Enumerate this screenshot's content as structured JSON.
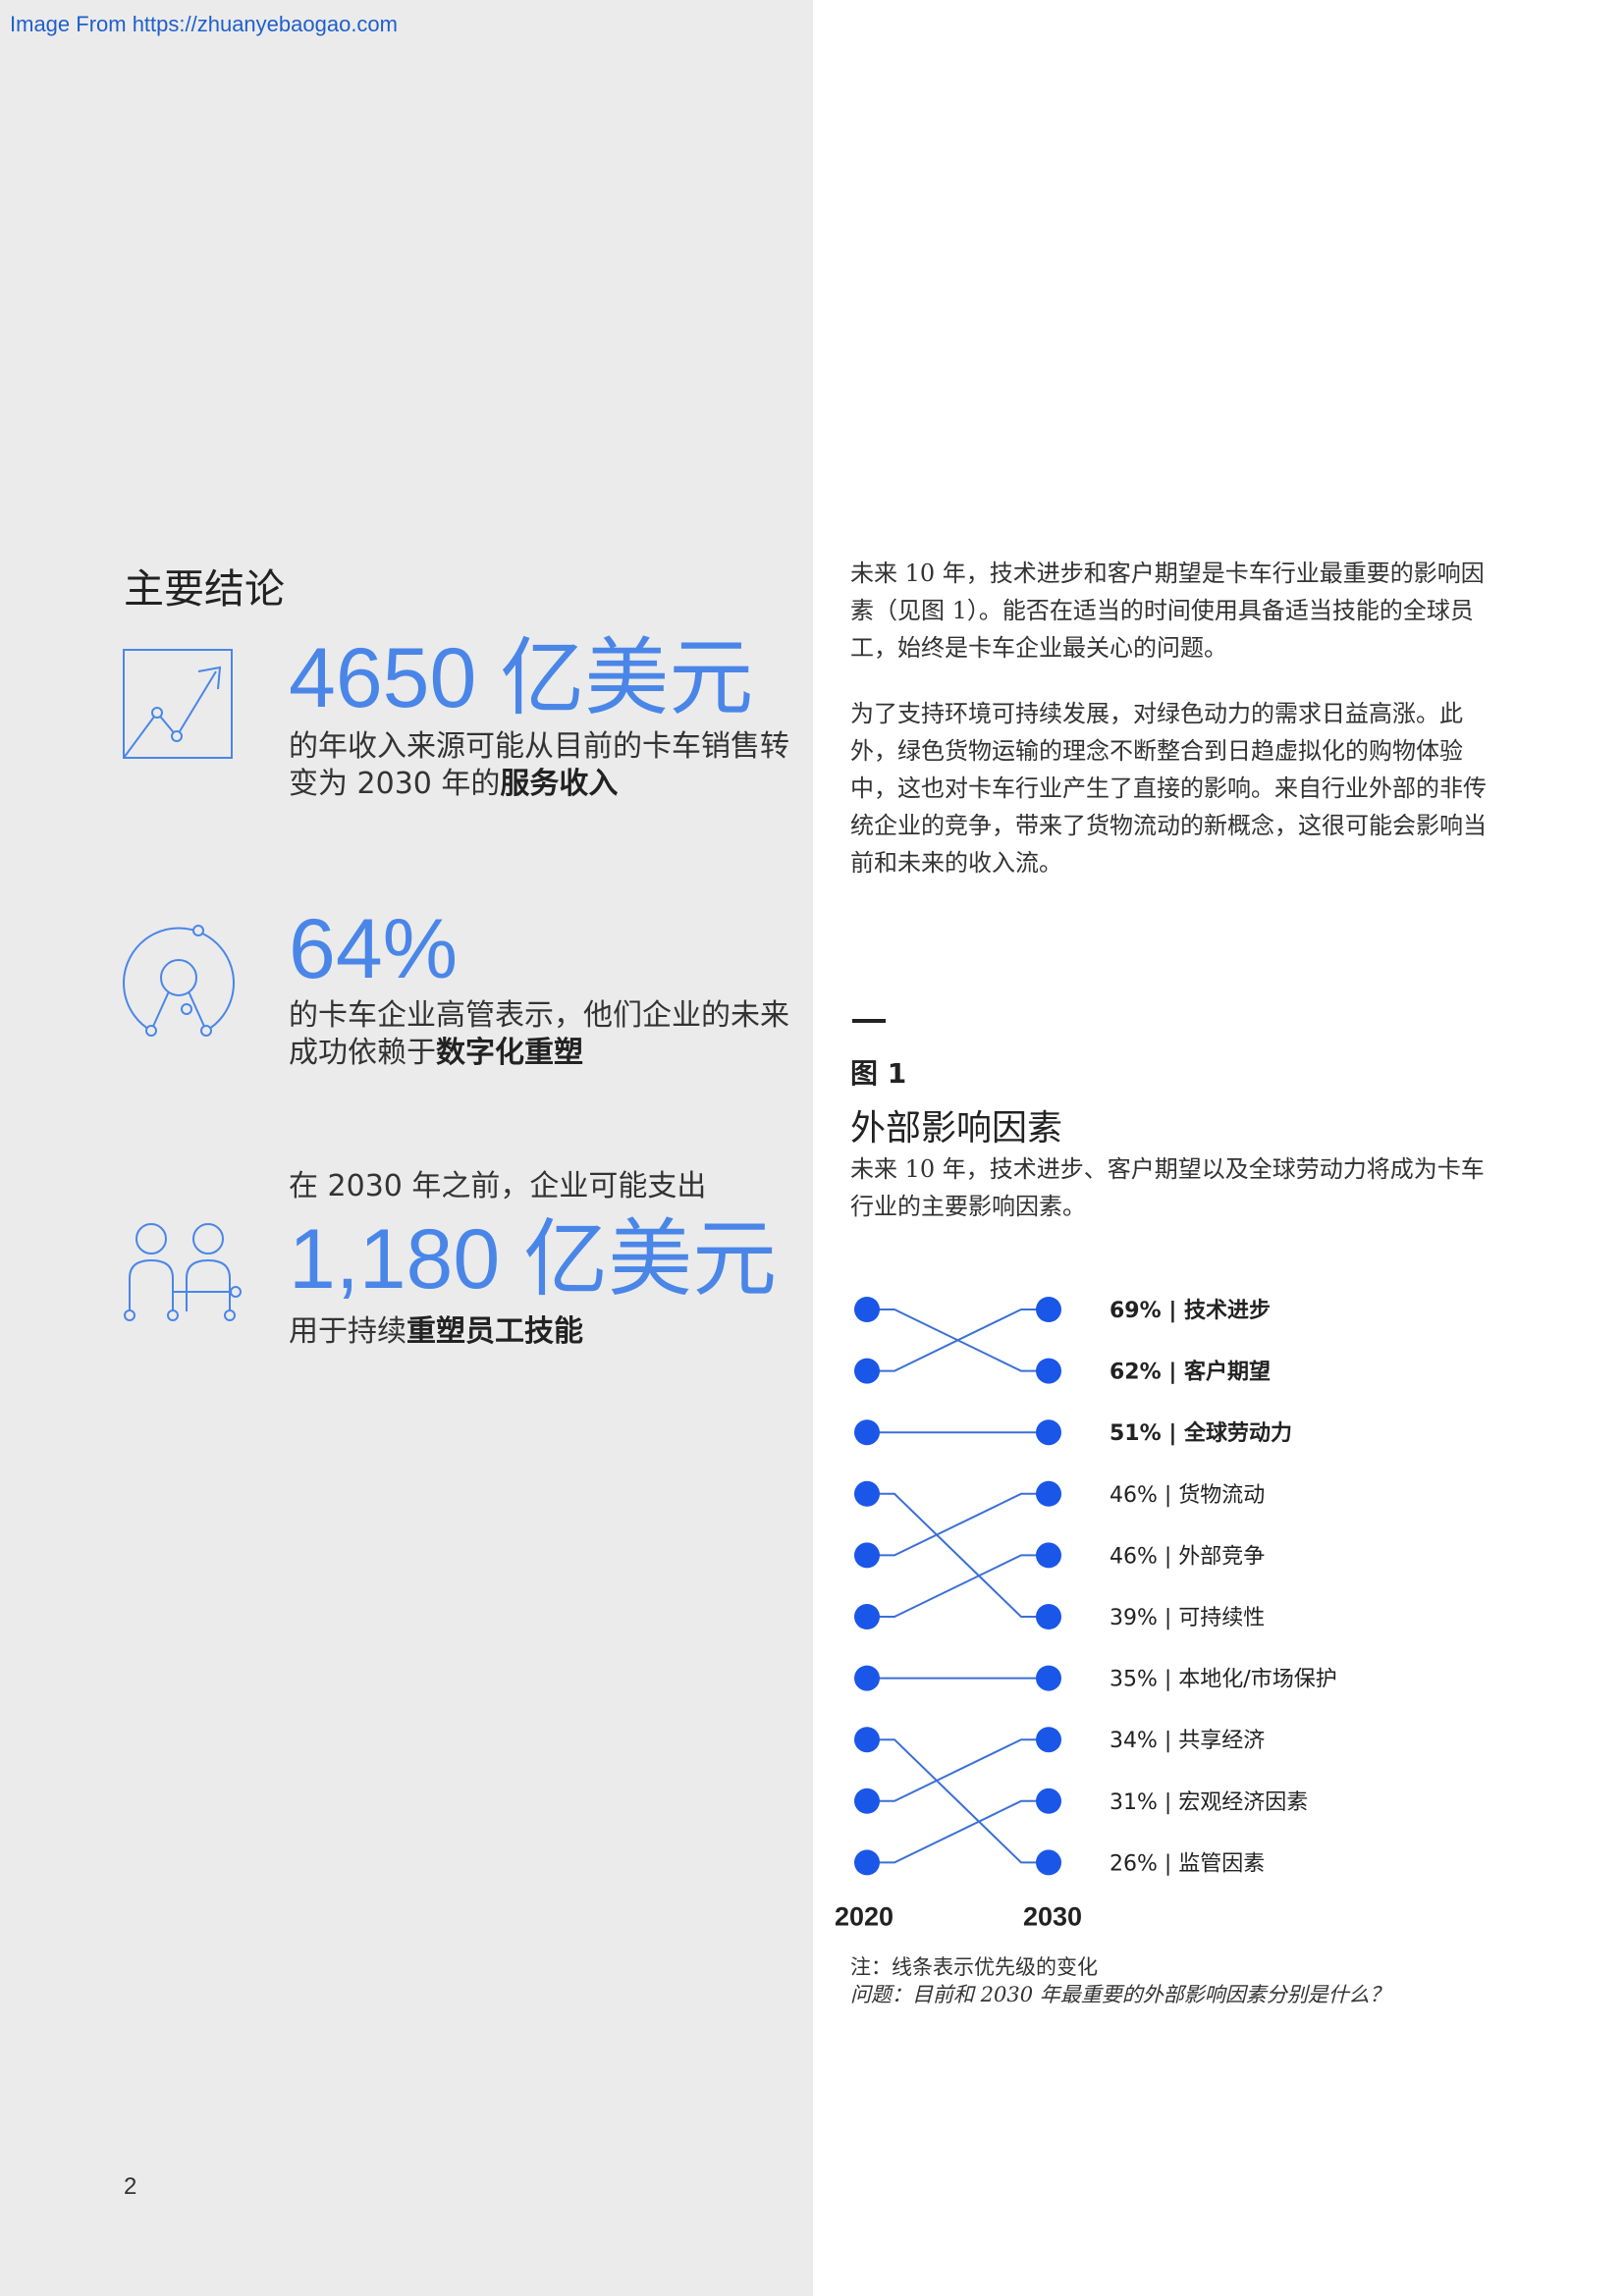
{
  "watermark": "Image From https://zhuanyebaogao.com",
  "page_number": "2",
  "key_findings": {
    "title": "主要结论",
    "stats": [
      {
        "icon": "trend-chart-icon",
        "value": "4650 亿美元",
        "lead": "",
        "desc_plain": "的年收入来源可能从目前的卡车销售转变为 2030 年的",
        "desc_bold": "服务收入"
      },
      {
        "icon": "circular-network-icon",
        "value": "64%",
        "lead": "",
        "desc_plain": "的卡车企业高管表示，他们企业的未来成功依赖于",
        "desc_bold": "数字化重塑"
      },
      {
        "icon": "people-network-icon",
        "value": "1,180 亿美元",
        "lead": "在 2030 年之前，企业可能支出",
        "desc_plain": "用于持续",
        "desc_bold": "重塑员工技能"
      }
    ]
  },
  "body": {
    "para1": "未来 10 年，技术进步和客户期望是卡车行业最重要的影响因素（见图 1）。能否在适当的时间使用具备适当技能的全球员工，始终是卡车企业最关心的问题。",
    "para2": "为了支持环境可持续发展，对绿色动力的需求日益高涨。此外，绿色货物运输的理念不断整合到日趋虚拟化的购物体验中，这也对卡车行业产生了直接的影响。来自行业外部的非传统企业的竞争，带来了货物流动的新概念，这很可能会影响当前和未来的收入流。"
  },
  "figure": {
    "label": "图 1",
    "title": "外部影响因素",
    "subtitle": "未来 10 年，技术进步、客户期望以及全球劳动力将成为卡车行业的主要影响因素。",
    "note": "注：线条表示优先级的变化",
    "question": "问题：目前和 2030 年最重要的外部影响因素分别是什么？"
  },
  "chart_data": {
    "type": "slope",
    "x_labels": [
      "2020",
      "2030"
    ],
    "node_color": "#1a56e8",
    "line_color": "#3a6fd8",
    "factors": [
      {
        "pct": "69%",
        "name": "技术进步",
        "rank_2020": 2,
        "rank_2030": 1,
        "bold": true
      },
      {
        "pct": "62%",
        "name": "客户期望",
        "rank_2020": 1,
        "rank_2030": 2,
        "bold": true
      },
      {
        "pct": "51%",
        "name": "全球劳动力",
        "rank_2020": 3,
        "rank_2030": 3,
        "bold": true
      },
      {
        "pct": "46%",
        "name": "货物流动",
        "rank_2020": 5,
        "rank_2030": 4,
        "bold": false
      },
      {
        "pct": "46%",
        "name": "外部竞争",
        "rank_2020": 6,
        "rank_2030": 5,
        "bold": false
      },
      {
        "pct": "39%",
        "name": "可持续性",
        "rank_2020": 4,
        "rank_2030": 6,
        "bold": false
      },
      {
        "pct": "35%",
        "name": "本地化/市场保护",
        "rank_2020": 7,
        "rank_2030": 7,
        "bold": false
      },
      {
        "pct": "34%",
        "name": "共享经济",
        "rank_2020": 9,
        "rank_2030": 8,
        "bold": false
      },
      {
        "pct": "31%",
        "name": "宏观经济因素",
        "rank_2020": 10,
        "rank_2030": 9,
        "bold": false
      },
      {
        "pct": "26%",
        "name": "监管因素",
        "rank_2020": 8,
        "rank_2030": 10,
        "bold": false
      }
    ]
  }
}
